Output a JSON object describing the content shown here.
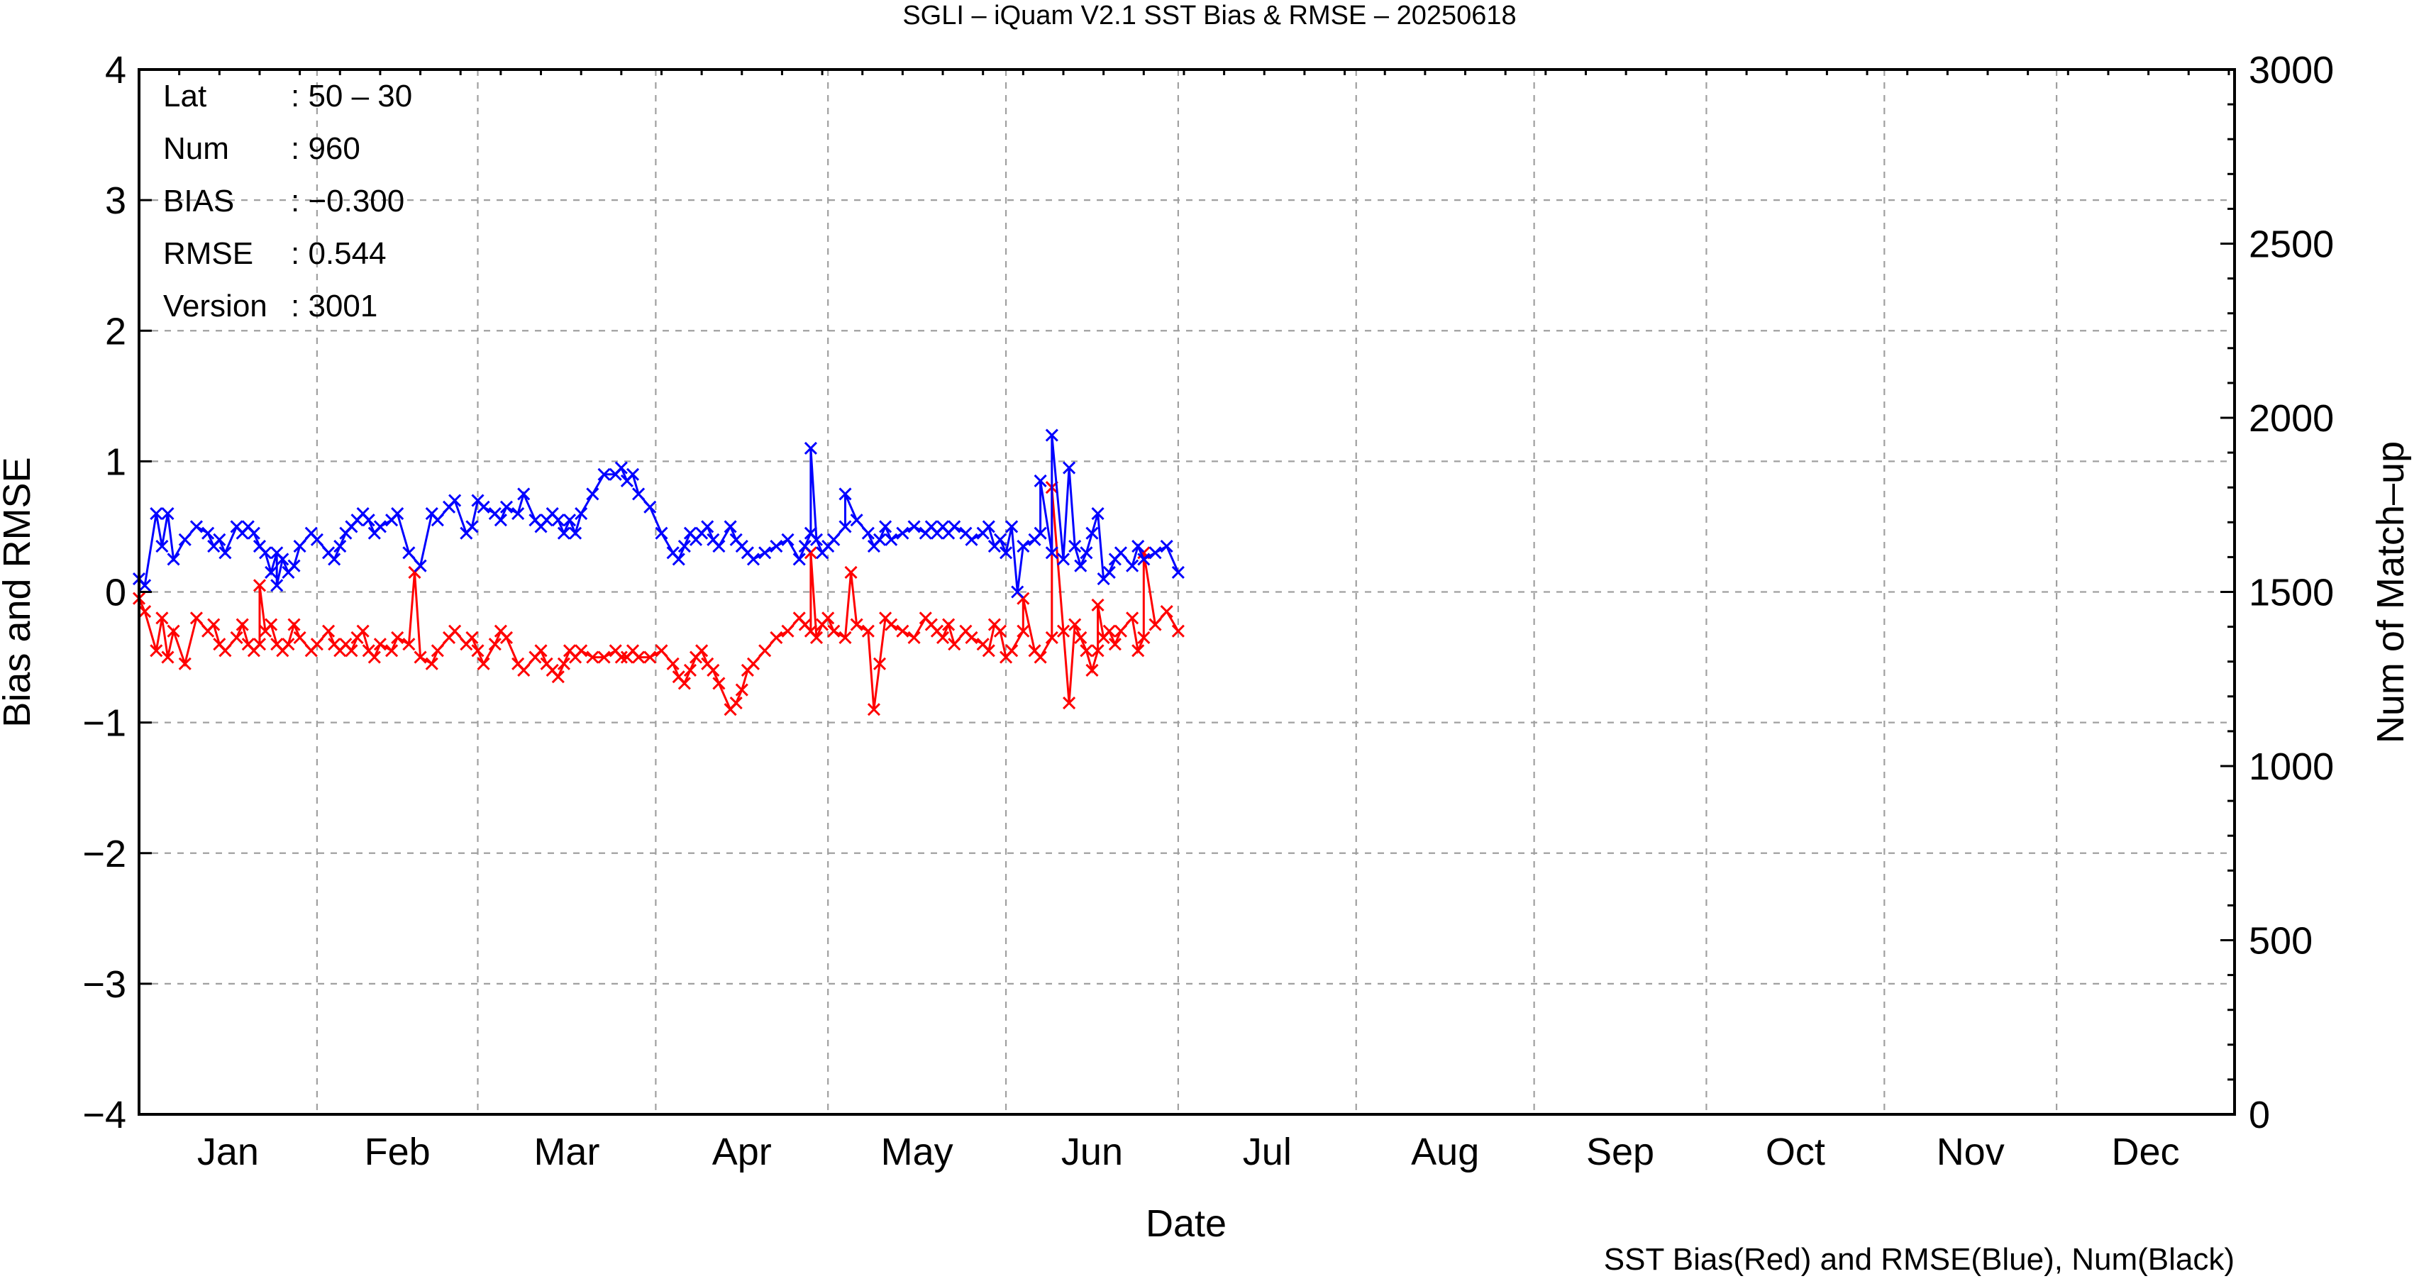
{
  "chart_data": {
    "type": "line",
    "title": "SGLI – iQuam V2.1 SST Bias & RMSE  – 20250618",
    "xlabel": "Date",
    "ylabel_left": "Bias and RMSE",
    "ylabel_right": "Num of Match–up",
    "note": "SST Bias(Red) and RMSE(Blue), Num(Black)",
    "x_range_days": [
      1,
      366
    ],
    "months": [
      "Jan",
      "Feb",
      "Mar",
      "Apr",
      "May",
      "Jun",
      "Jul",
      "Aug",
      "Sep",
      "Oct",
      "Nov",
      "Dec"
    ],
    "y_left_range": [
      -4,
      4
    ],
    "y_left_ticks": [
      "−4",
      "−3",
      "−2",
      "−1",
      "0",
      "1",
      "2",
      "3",
      "4"
    ],
    "y_right_range": [
      0,
      3000
    ],
    "y_right_ticks": [
      "0",
      "500",
      "1000",
      "1500",
      "2000",
      "2500",
      "3000"
    ],
    "grid": true,
    "stats": [
      {
        "key": "Lat",
        "value": ": 50 – 30"
      },
      {
        "key": "Num",
        "value": ": 960"
      },
      {
        "key": "BIAS",
        "value": ": −0.300"
      },
      {
        "key": "RMSE",
        "value": ": 0.544"
      },
      {
        "key": "Version",
        "value": ": 3001"
      }
    ],
    "series": [
      {
        "color": "#ff0000",
        "x": [
          1,
          2,
          4,
          5,
          6,
          7,
          9,
          11,
          13,
          14,
          15,
          16,
          18,
          19,
          20,
          21,
          22,
          23,
          24,
          25,
          26,
          27,
          28,
          29,
          31,
          32,
          34,
          35,
          36,
          37,
          38,
          39,
          40,
          41,
          42,
          43,
          45,
          46,
          48,
          50,
          52,
          53,
          55,
          56,
          58,
          59,
          60,
          61,
          63,
          64,
          65,
          67,
          68,
          70,
          71,
          72,
          73,
          74,
          75,
          76,
          77,
          78,
          80,
          82,
          84,
          85,
          86,
          87,
          88,
          90,
          92,
          94,
          95,
          96,
          97,
          98,
          99,
          100,
          101,
          102,
          104,
          105,
          106,
          107,
          108,
          110,
          112,
          114,
          116,
          117,
          118,
          119,
          120,
          121,
          122,
          124,
          126,
          128,
          129,
          130,
          131,
          132,
          134,
          136,
          138,
          139,
          140,
          141,
          142,
          143,
          145,
          146,
          148,
          149,
          150,
          151,
          152,
          153,
          155,
          157,
          158,
          160,
          162,
          164,
          165,
          166,
          167,
          168,
          169,
          170,
          171,
          172,
          174,
          175,
          176,
          178,
          180,
          182
        ],
        "values": [
          -0.05,
          -0.15,
          -0.45,
          -0.2,
          -0.5,
          -0.3,
          -0.55,
          -0.2,
          -0.3,
          -0.25,
          -0.4,
          -0.45,
          -0.35,
          -0.25,
          -0.4,
          -0.45,
          -0.4,
          -0.3,
          -0.25,
          -0.4,
          -0.45,
          -0.4,
          -0.25,
          -0.35,
          -0.45,
          -0.4,
          -0.3,
          -0.4,
          -0.45,
          -0.4,
          -0.45,
          -0.35,
          -0.3,
          -0.45,
          -0.5,
          -0.4,
          -0.45,
          -0.35,
          -0.4,
          -0.5,
          -0.55,
          -0.45,
          -0.35,
          -0.3,
          -0.4,
          -0.35,
          -0.45,
          -0.55,
          -0.4,
          -0.3,
          -0.35,
          -0.55,
          -0.6,
          -0.5,
          -0.45,
          -0.55,
          -0.6,
          -0.65,
          -0.55,
          -0.45,
          -0.5,
          -0.45,
          -0.5,
          -0.5,
          -0.45,
          -0.5,
          -0.5,
          -0.45,
          -0.5,
          -0.5,
          -0.45,
          -0.55,
          -0.65,
          -0.7,
          -0.6,
          -0.5,
          -0.45,
          -0.55,
          -0.6,
          -0.7,
          -0.9,
          -0.85,
          -0.75,
          -0.6,
          -0.55,
          -0.45,
          -0.35,
          -0.3,
          -0.2,
          -0.25,
          -0.3,
          -0.35,
          -0.25,
          -0.2,
          -0.3,
          -0.35,
          -0.25,
          -0.3,
          -0.9,
          -0.55,
          -0.2,
          -0.25,
          -0.3,
          -0.35,
          -0.2,
          -0.25,
          -0.3,
          -0.35,
          -0.25,
          -0.4,
          -0.3,
          -0.35,
          -0.4,
          -0.45,
          -0.25,
          -0.3,
          -0.5,
          -0.45,
          -0.3,
          -0.45,
          -0.5,
          -0.35,
          -0.3,
          -0.25,
          -0.35,
          -0.45,
          -0.6,
          -0.45,
          -0.35,
          -0.3,
          -0.4,
          -0.3,
          -0.2,
          -0.45,
          -0.35,
          -0.25,
          -0.15,
          -0.3
        ],
        "spikes": [
          [
            22,
            0.05
          ],
          [
            49,
            0.15
          ],
          [
            118,
            0.3
          ],
          [
            125,
            0.15
          ],
          [
            155,
            -0.05
          ],
          [
            160,
            0.8
          ],
          [
            163,
            -0.85
          ],
          [
            168,
            -0.1
          ],
          [
            176,
            0.3
          ]
        ]
      },
      {
        "color": "#0000ff",
        "x": [
          1,
          2,
          4,
          5,
          6,
          7,
          9,
          11,
          13,
          14,
          15,
          16,
          18,
          19,
          20,
          21,
          22,
          23,
          24,
          25,
          26,
          27,
          28,
          29,
          31,
          32,
          34,
          35,
          36,
          37,
          38,
          39,
          40,
          41,
          42,
          43,
          45,
          46,
          48,
          50,
          52,
          53,
          55,
          56,
          58,
          59,
          60,
          61,
          63,
          64,
          65,
          67,
          68,
          70,
          71,
          72,
          73,
          74,
          75,
          76,
          77,
          78,
          80,
          82,
          84,
          85,
          86,
          87,
          88,
          90,
          92,
          94,
          95,
          96,
          97,
          98,
          99,
          100,
          101,
          102,
          104,
          105,
          106,
          107,
          108,
          110,
          112,
          114,
          116,
          117,
          118,
          119,
          120,
          121,
          122,
          124,
          126,
          128,
          129,
          130,
          131,
          132,
          134,
          136,
          138,
          139,
          140,
          141,
          142,
          143,
          145,
          146,
          148,
          149,
          150,
          151,
          152,
          153,
          155,
          157,
          158,
          160,
          162,
          164,
          165,
          166,
          167,
          168,
          169,
          170,
          171,
          172,
          174,
          175,
          176,
          178,
          180,
          182
        ],
        "values": [
          0.1,
          0.05,
          0.6,
          0.35,
          0.6,
          0.25,
          0.4,
          0.5,
          0.45,
          0.35,
          0.4,
          0.3,
          0.5,
          0.45,
          0.5,
          0.45,
          0.35,
          0.3,
          0.15,
          0.3,
          0.25,
          0.15,
          0.2,
          0.35,
          0.45,
          0.4,
          0.3,
          0.25,
          0.35,
          0.45,
          0.5,
          0.55,
          0.6,
          0.55,
          0.45,
          0.5,
          0.55,
          0.6,
          0.3,
          0.2,
          0.6,
          0.55,
          0.65,
          0.7,
          0.45,
          0.5,
          0.7,
          0.65,
          0.6,
          0.55,
          0.65,
          0.6,
          0.75,
          0.55,
          0.5,
          0.55,
          0.6,
          0.55,
          0.45,
          0.55,
          0.45,
          0.6,
          0.75,
          0.9,
          0.9,
          0.95,
          0.85,
          0.9,
          0.75,
          0.65,
          0.45,
          0.3,
          0.25,
          0.35,
          0.45,
          0.4,
          0.45,
          0.5,
          0.4,
          0.35,
          0.5,
          0.4,
          0.35,
          0.3,
          0.25,
          0.3,
          0.35,
          0.4,
          0.25,
          0.35,
          0.45,
          0.4,
          0.3,
          0.35,
          0.4,
          0.5,
          0.55,
          0.45,
          0.35,
          0.4,
          0.5,
          0.4,
          0.45,
          0.5,
          0.45,
          0.5,
          0.45,
          0.5,
          0.45,
          0.5,
          0.45,
          0.4,
          0.45,
          0.5,
          0.35,
          0.4,
          0.3,
          0.5,
          0.35,
          0.4,
          0.45,
          0.3,
          0.25,
          0.35,
          0.2,
          0.3,
          0.45,
          0.6,
          0.1,
          0.15,
          0.25,
          0.3,
          0.2,
          0.35,
          0.25,
          0.3,
          0.35,
          0.15
        ],
        "spikes": [
          [
            25,
            0.05
          ],
          [
            118,
            1.1
          ],
          [
            124,
            0.75
          ],
          [
            154,
            0.0
          ],
          [
            158,
            0.85
          ],
          [
            160,
            1.2
          ],
          [
            163,
            0.95
          ]
        ]
      }
    ]
  }
}
